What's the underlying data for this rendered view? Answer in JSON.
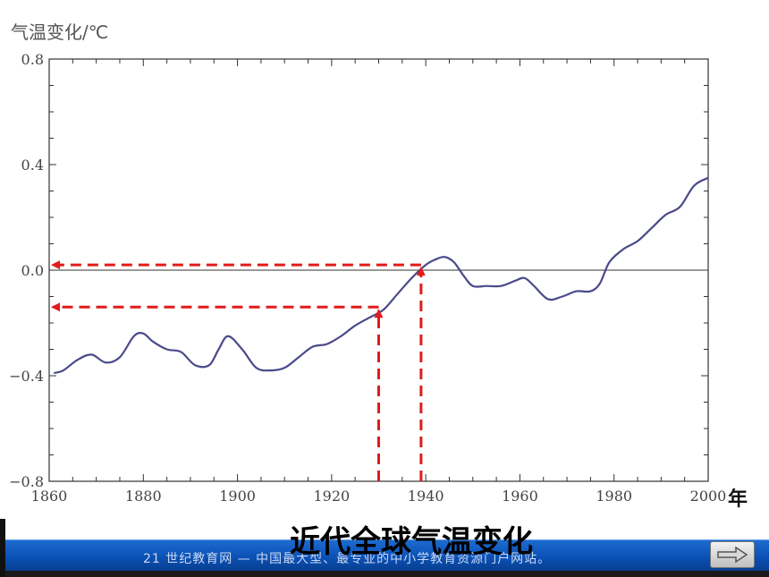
{
  "chart_data": {
    "type": "line",
    "ylabel": "气温变化/℃",
    "xlabel": "年",
    "xlim": [
      1860,
      2000
    ],
    "ylim": [
      -0.8,
      0.8
    ],
    "x_ticks": [
      "1860",
      "1880",
      "1900",
      "1920",
      "1940",
      "1960",
      "1980",
      "2000"
    ],
    "y_ticks": [
      "0.8",
      "0.4",
      "0.0",
      "−0.4",
      "−0.8"
    ],
    "y_tick_values": [
      0.8,
      0.4,
      0.0,
      -0.4,
      -0.8
    ],
    "x_tick_values": [
      1860,
      1880,
      1900,
      1920,
      1940,
      1960,
      1980,
      2000
    ],
    "series": [
      {
        "color": "#4a4a8a",
        "x": [
          1861,
          1863,
          1866,
          1869,
          1872,
          1875,
          1878,
          1880,
          1882,
          1885,
          1888,
          1891,
          1894,
          1896,
          1898,
          1901,
          1904,
          1907,
          1910,
          1913,
          1916,
          1919,
          1922,
          1925,
          1928,
          1931,
          1934,
          1937,
          1940,
          1942,
          1944,
          1946,
          1948,
          1950,
          1953,
          1956,
          1959,
          1961,
          1963,
          1966,
          1969,
          1972,
          1975,
          1977,
          1979,
          1982,
          1985,
          1988,
          1991,
          1994,
          1997,
          2000
        ],
        "y": [
          -0.39,
          -0.38,
          -0.34,
          -0.32,
          -0.35,
          -0.33,
          -0.25,
          -0.24,
          -0.27,
          -0.3,
          -0.31,
          -0.36,
          -0.36,
          -0.3,
          -0.25,
          -0.3,
          -0.37,
          -0.38,
          -0.37,
          -0.33,
          -0.29,
          -0.28,
          -0.25,
          -0.21,
          -0.18,
          -0.15,
          -0.09,
          -0.03,
          0.02,
          0.04,
          0.05,
          0.03,
          -0.02,
          -0.06,
          -0.06,
          -0.06,
          -0.04,
          -0.03,
          -0.06,
          -0.11,
          -0.1,
          -0.08,
          -0.08,
          -0.05,
          0.03,
          0.08,
          0.11,
          0.16,
          0.21,
          0.24,
          0.32,
          0.35
        ]
      }
    ],
    "annotations": [
      {
        "x": 1930,
        "y": -0.14,
        "color": "#e21b1b"
      },
      {
        "x": 1939,
        "y": 0.02,
        "color": "#e21b1b"
      }
    ],
    "zero_line": true,
    "grid": false
  },
  "caption": "近代全球气温变化",
  "footer": {
    "text": "21 世纪教育网 — 中国最大型、最专业的中小学教育资源门户网站。"
  },
  "colors": {
    "axis": "#333333",
    "line": "#4a4a8a",
    "annotation": "#e21b1b",
    "footer_bar": "#0a4fb3"
  },
  "icons": {
    "next": "right-arrow-icon"
  }
}
